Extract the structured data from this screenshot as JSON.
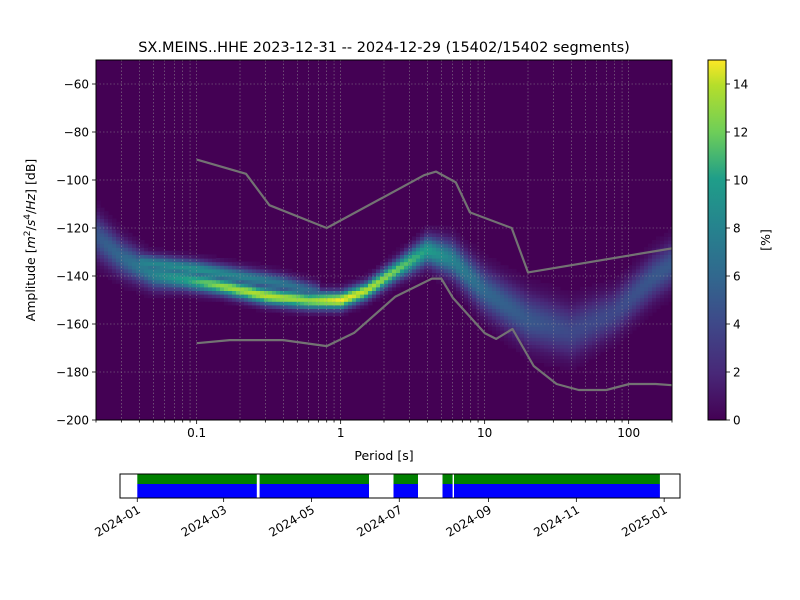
{
  "title": "SX.MEINS..HHE   2023-12-31 -- 2024-12-29  (15402/15402 segments)",
  "chart_data": {
    "type": "heatmap",
    "title": "SX.MEINS..HHE   2023-12-31 -- 2024-12-29  (15402/15402 segments)",
    "xlabel": "Period [s]",
    "ylabel": "Amplitude [m²/s⁴/Hz] [dB]",
    "xscale": "log",
    "xlim": [
      0.02,
      200
    ],
    "ylim": [
      -200,
      -50
    ],
    "xticks": [
      0.1,
      1,
      10,
      100
    ],
    "xticklabels": [
      "0.1",
      "1",
      "10",
      "100"
    ],
    "yticks": [
      -200,
      -180,
      -160,
      -140,
      -120,
      -100,
      -80,
      -60
    ],
    "yticklabels": [
      "−200",
      "−180",
      "−160",
      "−140",
      "−120",
      "−100",
      "−80",
      "−60"
    ],
    "grid": true,
    "colorbar": {
      "label": "[%]",
      "range": [
        0,
        15
      ],
      "ticks": [
        0,
        2,
        4,
        6,
        8,
        10,
        12,
        14
      ],
      "ticklabels": [
        "0",
        "2",
        "4",
        "6",
        "8",
        "10",
        "12",
        "14"
      ],
      "colormap": [
        "#440154",
        "#3b528b",
        "#21918c",
        "#5ec962",
        "#fde725"
      ]
    },
    "density_ridge": [
      {
        "period": 0.02,
        "db": -123,
        "peak": 5,
        "spread": 6
      },
      {
        "period": 0.03,
        "db": -132,
        "peak": 6,
        "spread": 5
      },
      {
        "period": 0.05,
        "db": -139,
        "peak": 8,
        "spread": 4
      },
      {
        "period": 0.08,
        "db": -141,
        "peak": 10,
        "spread": 3
      },
      {
        "period": 0.15,
        "db": -144,
        "peak": 13,
        "spread": 2.5
      },
      {
        "period": 0.3,
        "db": -148,
        "peak": 14,
        "spread": 2.5
      },
      {
        "period": 0.6,
        "db": -150,
        "peak": 13,
        "spread": 2.5
      },
      {
        "period": 1,
        "db": -150,
        "peak": 15,
        "spread": 2.5
      },
      {
        "period": 1.5,
        "db": -146,
        "peak": 14,
        "spread": 2.5
      },
      {
        "period": 2.5,
        "db": -137,
        "peak": 12,
        "spread": 3
      },
      {
        "period": 4,
        "db": -129,
        "peak": 10,
        "spread": 4
      },
      {
        "period": 6,
        "db": -133,
        "peak": 8,
        "spread": 5
      },
      {
        "period": 10,
        "db": -146,
        "peak": 6,
        "spread": 6
      },
      {
        "period": 20,
        "db": -158,
        "peak": 5,
        "spread": 7
      },
      {
        "period": 40,
        "db": -163,
        "peak": 4,
        "spread": 7
      },
      {
        "period": 80,
        "db": -155,
        "peak": 4,
        "spread": 6
      },
      {
        "period": 150,
        "db": -140,
        "peak": 5,
        "spread": 6
      },
      {
        "period": 200,
        "db": -135,
        "peak": 5,
        "spread": 6
      }
    ],
    "secondary_ridge": [
      {
        "period": 0.04,
        "db": -134,
        "peak": 8,
        "spread": 2.5
      },
      {
        "period": 0.1,
        "db": -137,
        "peak": 9,
        "spread": 2.5
      },
      {
        "period": 0.2,
        "db": -140,
        "peak": 8,
        "spread": 2.5
      },
      {
        "period": 0.4,
        "db": -143,
        "peak": 7,
        "spread": 2.5
      },
      {
        "period": 0.7,
        "db": -147,
        "peak": 6,
        "spread": 2.5
      }
    ],
    "noise_model_high": {
      "period": [
        0.1,
        0.22,
        0.32,
        0.8,
        3.8,
        4.6,
        6.3,
        7.9,
        15.4,
        20,
        354
      ],
      "db": [
        -91.5,
        -97.4,
        -110.5,
        -120,
        -98,
        -96.5,
        -101,
        -113.5,
        -120,
        -138.5,
        -126
      ]
    },
    "noise_model_low": {
      "period": [
        0.1,
        0.17,
        0.4,
        0.8,
        1.24,
        2.4,
        4.3,
        5,
        6,
        10,
        12,
        15.6,
        21.9,
        31.6,
        45,
        70,
        101,
        154,
        200
      ],
      "db": [
        -168,
        -166.7,
        -166.7,
        -169.2,
        -163.7,
        -148.6,
        -141.1,
        -141.1,
        -149,
        -163.8,
        -166.2,
        -162.1,
        -177.5,
        -185,
        -187.5,
        -187.5,
        -185,
        -185,
        -185.5
      ]
    },
    "timeline": {
      "xticklabels": [
        "2024-01",
        "2024-03",
        "2024-05",
        "2024-07",
        "2024-09",
        "2024-11",
        "2025-01"
      ],
      "xtick_dates": [
        "2024-01-01",
        "2024-03-01",
        "2024-05-01",
        "2024-07-01",
        "2024-09-01",
        "2024-11-01",
        "2025-01-01"
      ],
      "range": [
        "2023-12-20",
        "2025-01-12"
      ],
      "colors": {
        "available": "#008000",
        "processed": "#0000ff"
      },
      "segments": [
        {
          "start": "2024-01-01",
          "end": "2024-03-24"
        },
        {
          "start": "2024-03-26",
          "end": "2024-06-10"
        },
        {
          "start": "2024-06-27",
          "end": "2024-07-14"
        },
        {
          "start": "2024-07-31",
          "end": "2024-08-07"
        },
        {
          "start": "2024-08-08",
          "end": "2024-12-29"
        }
      ]
    }
  }
}
